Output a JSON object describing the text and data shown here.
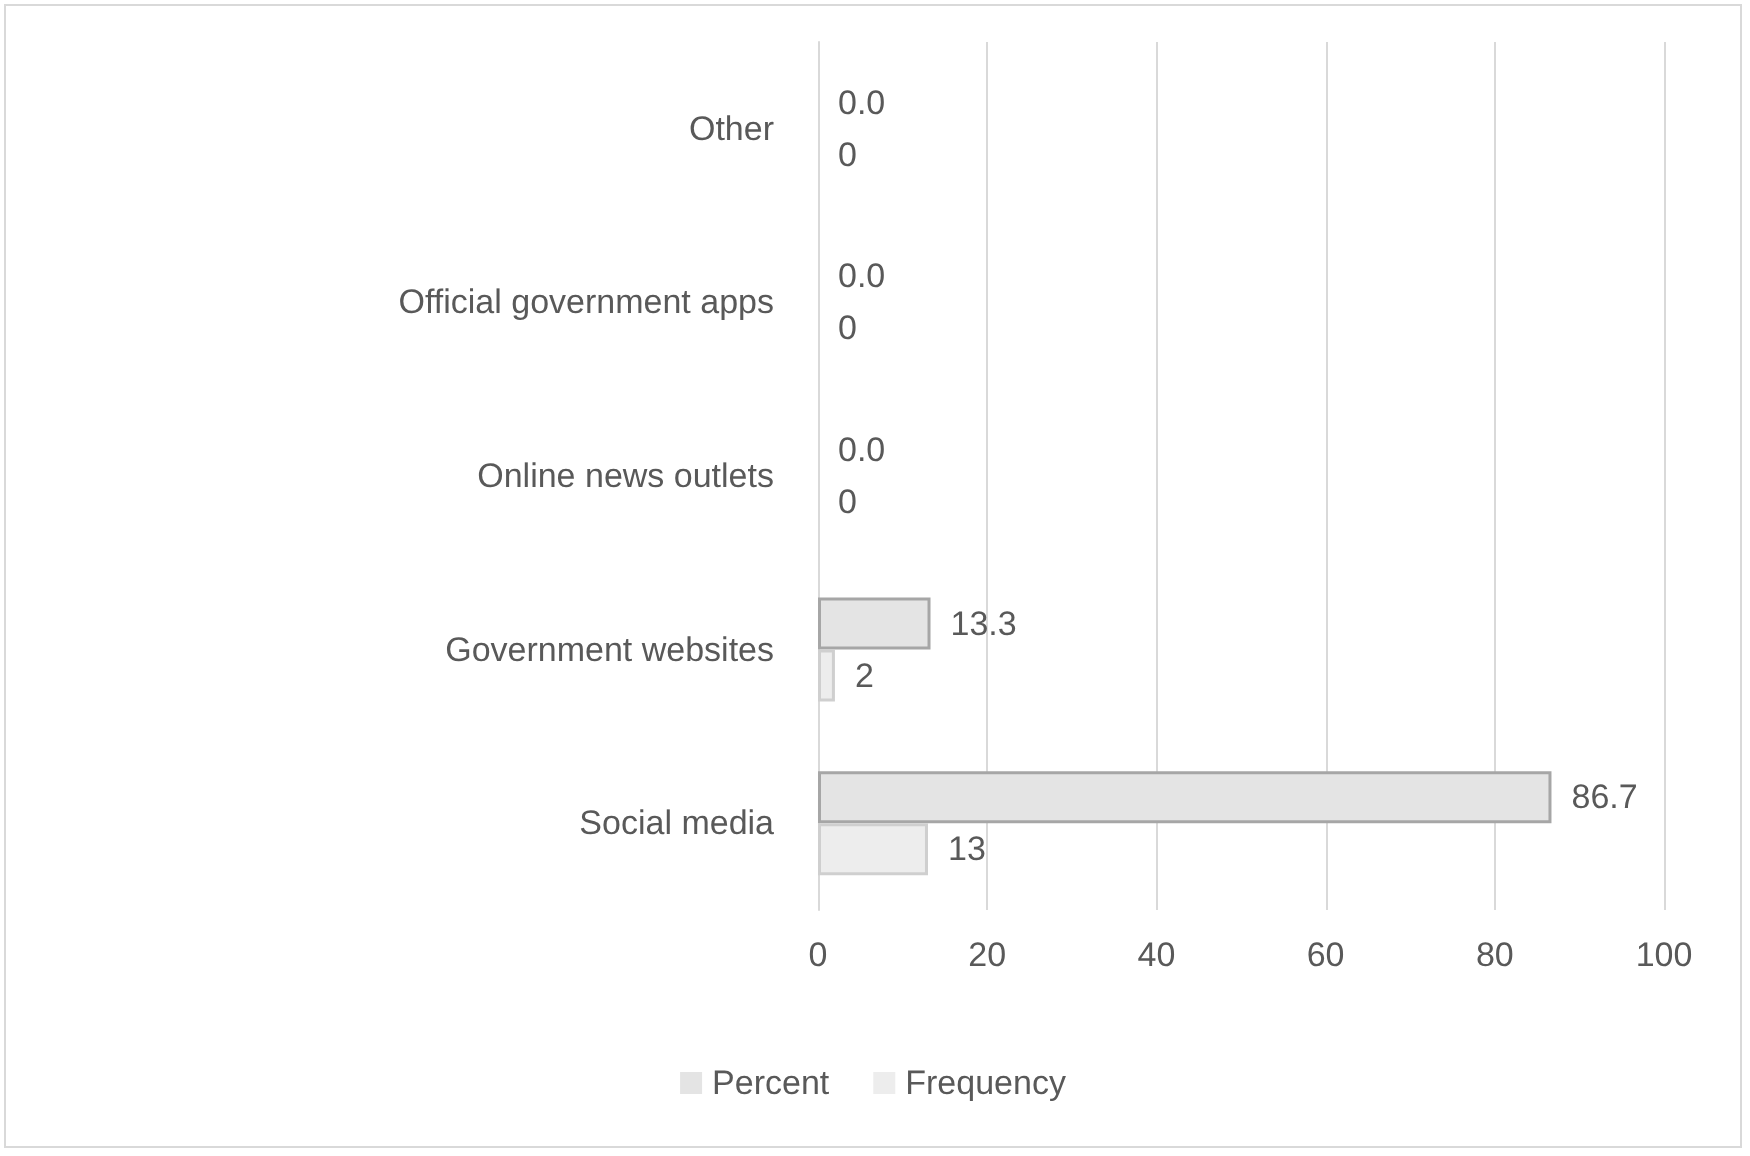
{
  "chart_data": {
    "type": "bar",
    "orientation": "horizontal",
    "categories": [
      "Other",
      "Official government apps",
      "Online news outlets",
      "Government websites",
      "Social media"
    ],
    "series": [
      {
        "name": "Percent",
        "color": "#e4e4e4",
        "values": [
          0.0,
          0.0,
          0.0,
          13.3,
          86.7
        ],
        "value_labels": [
          "0.0",
          "0.0",
          "0.0",
          "13.3",
          "86.7"
        ]
      },
      {
        "name": "Frequency",
        "color": "#ededed",
        "values": [
          0,
          0,
          0,
          2,
          13
        ],
        "value_labels": [
          "0",
          "0",
          "0",
          "2",
          "13"
        ]
      }
    ],
    "xlim": [
      0,
      100
    ],
    "xticks": [
      0,
      20,
      40,
      60,
      80,
      100
    ],
    "grid": "x",
    "legend": "bottom"
  }
}
